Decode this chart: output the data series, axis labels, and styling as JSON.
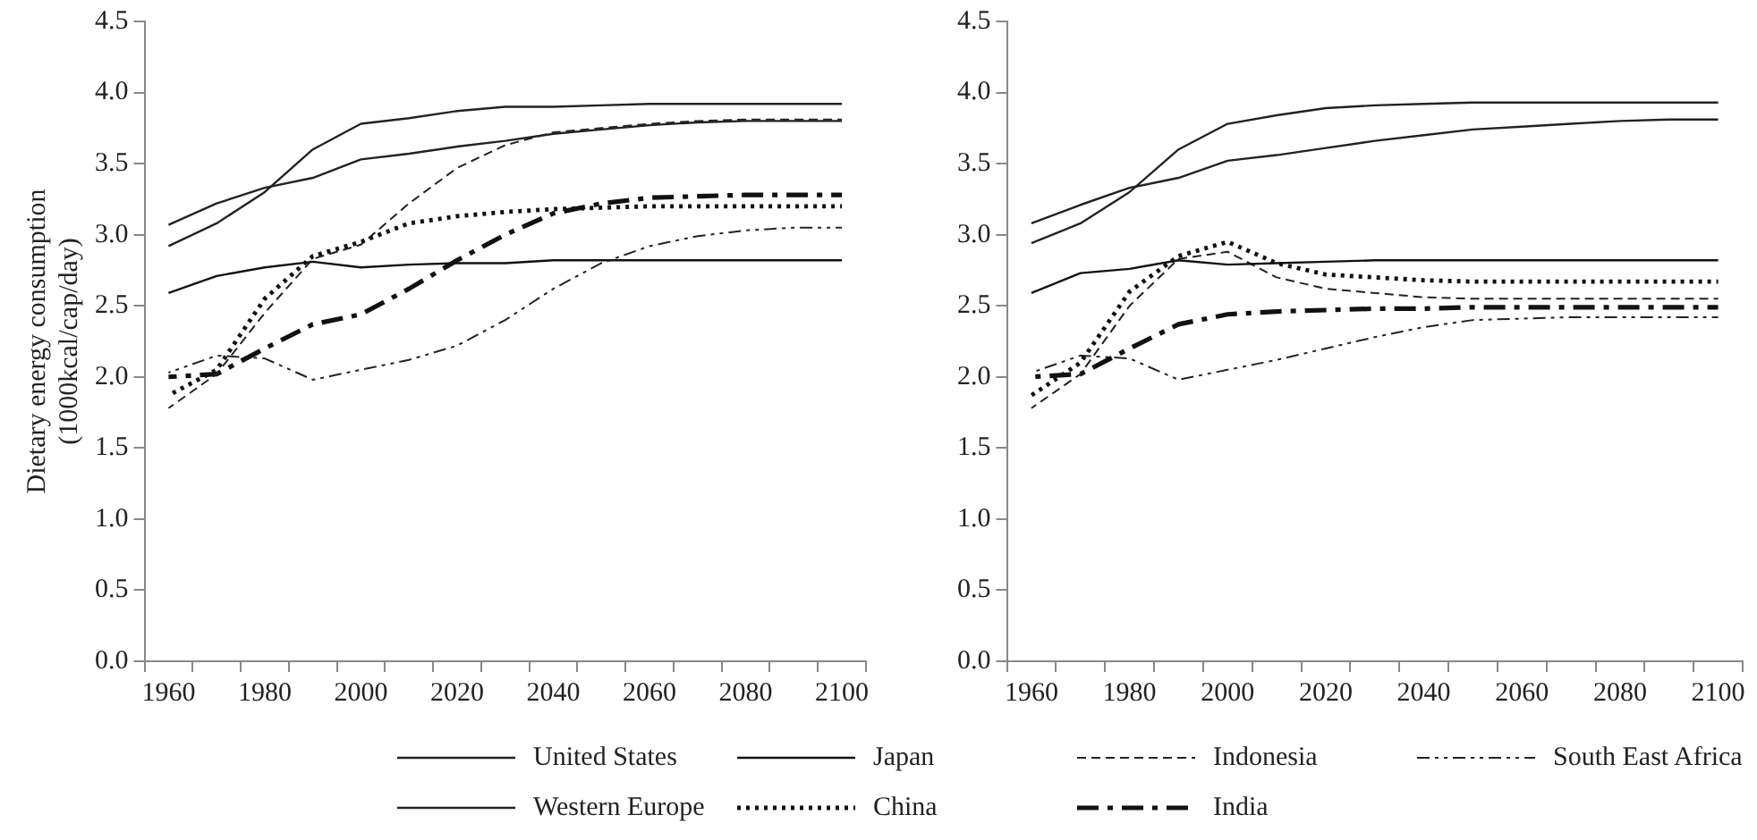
{
  "chart_data": [
    {
      "type": "line",
      "ylabel": "Dietary energy consumption\n(1000kcal/cap/day)",
      "categories": [
        "1960",
        null,
        "1980",
        null,
        "2000",
        null,
        "2020",
        null,
        "2040",
        null,
        "2060",
        null,
        "2080",
        null,
        "2100"
      ],
      "ylim": [
        0,
        4.5
      ],
      "yticks": [
        {
          "value": 0,
          "label": "0.0"
        },
        {
          "value": 0.5,
          "label": "0.5"
        },
        {
          "value": 1,
          "label": "1.0"
        },
        {
          "value": 1.5,
          "label": "1.5"
        },
        {
          "value": 2,
          "label": "2.0"
        },
        {
          "value": 2.5,
          "label": "2.5"
        },
        {
          "value": 3,
          "label": "3.0"
        },
        {
          "value": 3.5,
          "label": "3.5"
        },
        {
          "value": 4,
          "label": "4.0"
        },
        {
          "value": 4.5,
          "label": "4.5"
        }
      ],
      "grid": false,
      "legend": "bottom",
      "marker": "none",
      "series": [
        {
          "name": "United States",
          "color": "#222222",
          "line_style": "solid",
          "values": [
            2.92,
            3.08,
            3.3,
            3.6,
            3.78,
            3.82,
            3.87,
            3.9,
            3.9,
            3.91,
            3.92,
            3.92,
            3.92,
            3.92,
            3.92
          ]
        },
        {
          "name": "Western Europe",
          "color": "#222222",
          "line_style": "solid",
          "values": [
            3.07,
            3.22,
            3.33,
            3.4,
            3.53,
            3.57,
            3.62,
            3.66,
            3.71,
            3.74,
            3.77,
            3.79,
            3.8,
            3.8,
            3.8
          ]
        },
        {
          "name": "Japan",
          "color": "#111111",
          "line_style": "solid",
          "values": [
            2.59,
            2.71,
            2.77,
            2.81,
            2.77,
            2.79,
            2.8,
            2.8,
            2.82,
            2.82,
            2.82,
            2.82,
            2.82,
            2.82,
            2.82
          ]
        },
        {
          "name": "China",
          "color": "#111111",
          "line_style": "dotted",
          "values": [
            1.87,
            2.05,
            2.55,
            2.85,
            2.95,
            3.08,
            3.13,
            3.16,
            3.18,
            3.19,
            3.2,
            3.2,
            3.2,
            3.2,
            3.2
          ]
        },
        {
          "name": "Indonesia",
          "color": "#222222",
          "line_style": "dashed",
          "values": [
            1.78,
            2.02,
            2.45,
            2.83,
            2.93,
            3.22,
            3.47,
            3.63,
            3.72,
            3.75,
            3.78,
            3.8,
            3.81,
            3.81,
            3.81
          ]
        },
        {
          "name": "India",
          "color": "#111111",
          "line_style": "dashdot",
          "values": [
            2,
            2.02,
            2.2,
            2.37,
            2.44,
            2.62,
            2.82,
            3,
            3.15,
            3.22,
            3.26,
            3.27,
            3.28,
            3.28,
            3.28
          ]
        },
        {
          "name": "South East Africa",
          "color": "#222222",
          "line_style": "dashdotdot",
          "values": [
            2.03,
            2.15,
            2.13,
            1.98,
            2.05,
            2.12,
            2.22,
            2.4,
            2.62,
            2.8,
            2.92,
            2.99,
            3.03,
            3.05,
            3.05
          ]
        }
      ]
    },
    {
      "type": "line",
      "categories": [
        "1960",
        null,
        "1980",
        null,
        "2000",
        null,
        "2020",
        null,
        "2040",
        null,
        "2060",
        null,
        "2080",
        null,
        "2100"
      ],
      "ylim": [
        0,
        4.5
      ],
      "yticks": [
        {
          "value": 0,
          "label": "0.0"
        },
        {
          "value": 0.5,
          "label": "0.5"
        },
        {
          "value": 1,
          "label": "1.0"
        },
        {
          "value": 1.5,
          "label": "1.5"
        },
        {
          "value": 2,
          "label": "2.0"
        },
        {
          "value": 2.5,
          "label": "2.5"
        },
        {
          "value": 3,
          "label": "3.0"
        },
        {
          "value": 3.5,
          "label": "3.5"
        },
        {
          "value": 4,
          "label": "4.0"
        },
        {
          "value": 4.5,
          "label": "4.5"
        }
      ],
      "grid": false,
      "marker": "none",
      "series": [
        {
          "color": "#222222",
          "line_style": "solid",
          "values": [
            2.94,
            3.08,
            3.3,
            3.6,
            3.78,
            3.84,
            3.89,
            3.91,
            3.92,
            3.93,
            3.93,
            3.93,
            3.93,
            3.93,
            3.93
          ]
        },
        {
          "color": "#222222",
          "line_style": "solid",
          "values": [
            3.08,
            3.21,
            3.33,
            3.4,
            3.52,
            3.56,
            3.61,
            3.66,
            3.7,
            3.74,
            3.76,
            3.78,
            3.8,
            3.81,
            3.81
          ]
        },
        {
          "color": "#111111",
          "line_style": "solid",
          "values": [
            2.59,
            2.73,
            2.76,
            2.82,
            2.79,
            2.8,
            2.81,
            2.82,
            2.82,
            2.82,
            2.82,
            2.82,
            2.82,
            2.82,
            2.82
          ]
        },
        {
          "color": "#111111",
          "line_style": "dotted",
          "values": [
            1.87,
            2.1,
            2.6,
            2.85,
            2.95,
            2.8,
            2.72,
            2.7,
            2.68,
            2.67,
            2.67,
            2.67,
            2.67,
            2.67,
            2.67
          ]
        },
        {
          "color": "#222222",
          "line_style": "dashed",
          "values": [
            1.78,
            2.02,
            2.5,
            2.83,
            2.88,
            2.7,
            2.62,
            2.59,
            2.56,
            2.55,
            2.55,
            2.55,
            2.55,
            2.55,
            2.55
          ]
        },
        {
          "color": "#111111",
          "line_style": "dashdot",
          "values": [
            2,
            2.02,
            2.2,
            2.37,
            2.44,
            2.46,
            2.47,
            2.48,
            2.48,
            2.49,
            2.49,
            2.49,
            2.49,
            2.49,
            2.49
          ]
        },
        {
          "color": "#222222",
          "line_style": "dashdotdot",
          "values": [
            2.03,
            2.15,
            2.13,
            1.98,
            2.05,
            2.12,
            2.2,
            2.28,
            2.35,
            2.4,
            2.41,
            2.42,
            2.42,
            2.42,
            2.42
          ]
        }
      ]
    }
  ]
}
